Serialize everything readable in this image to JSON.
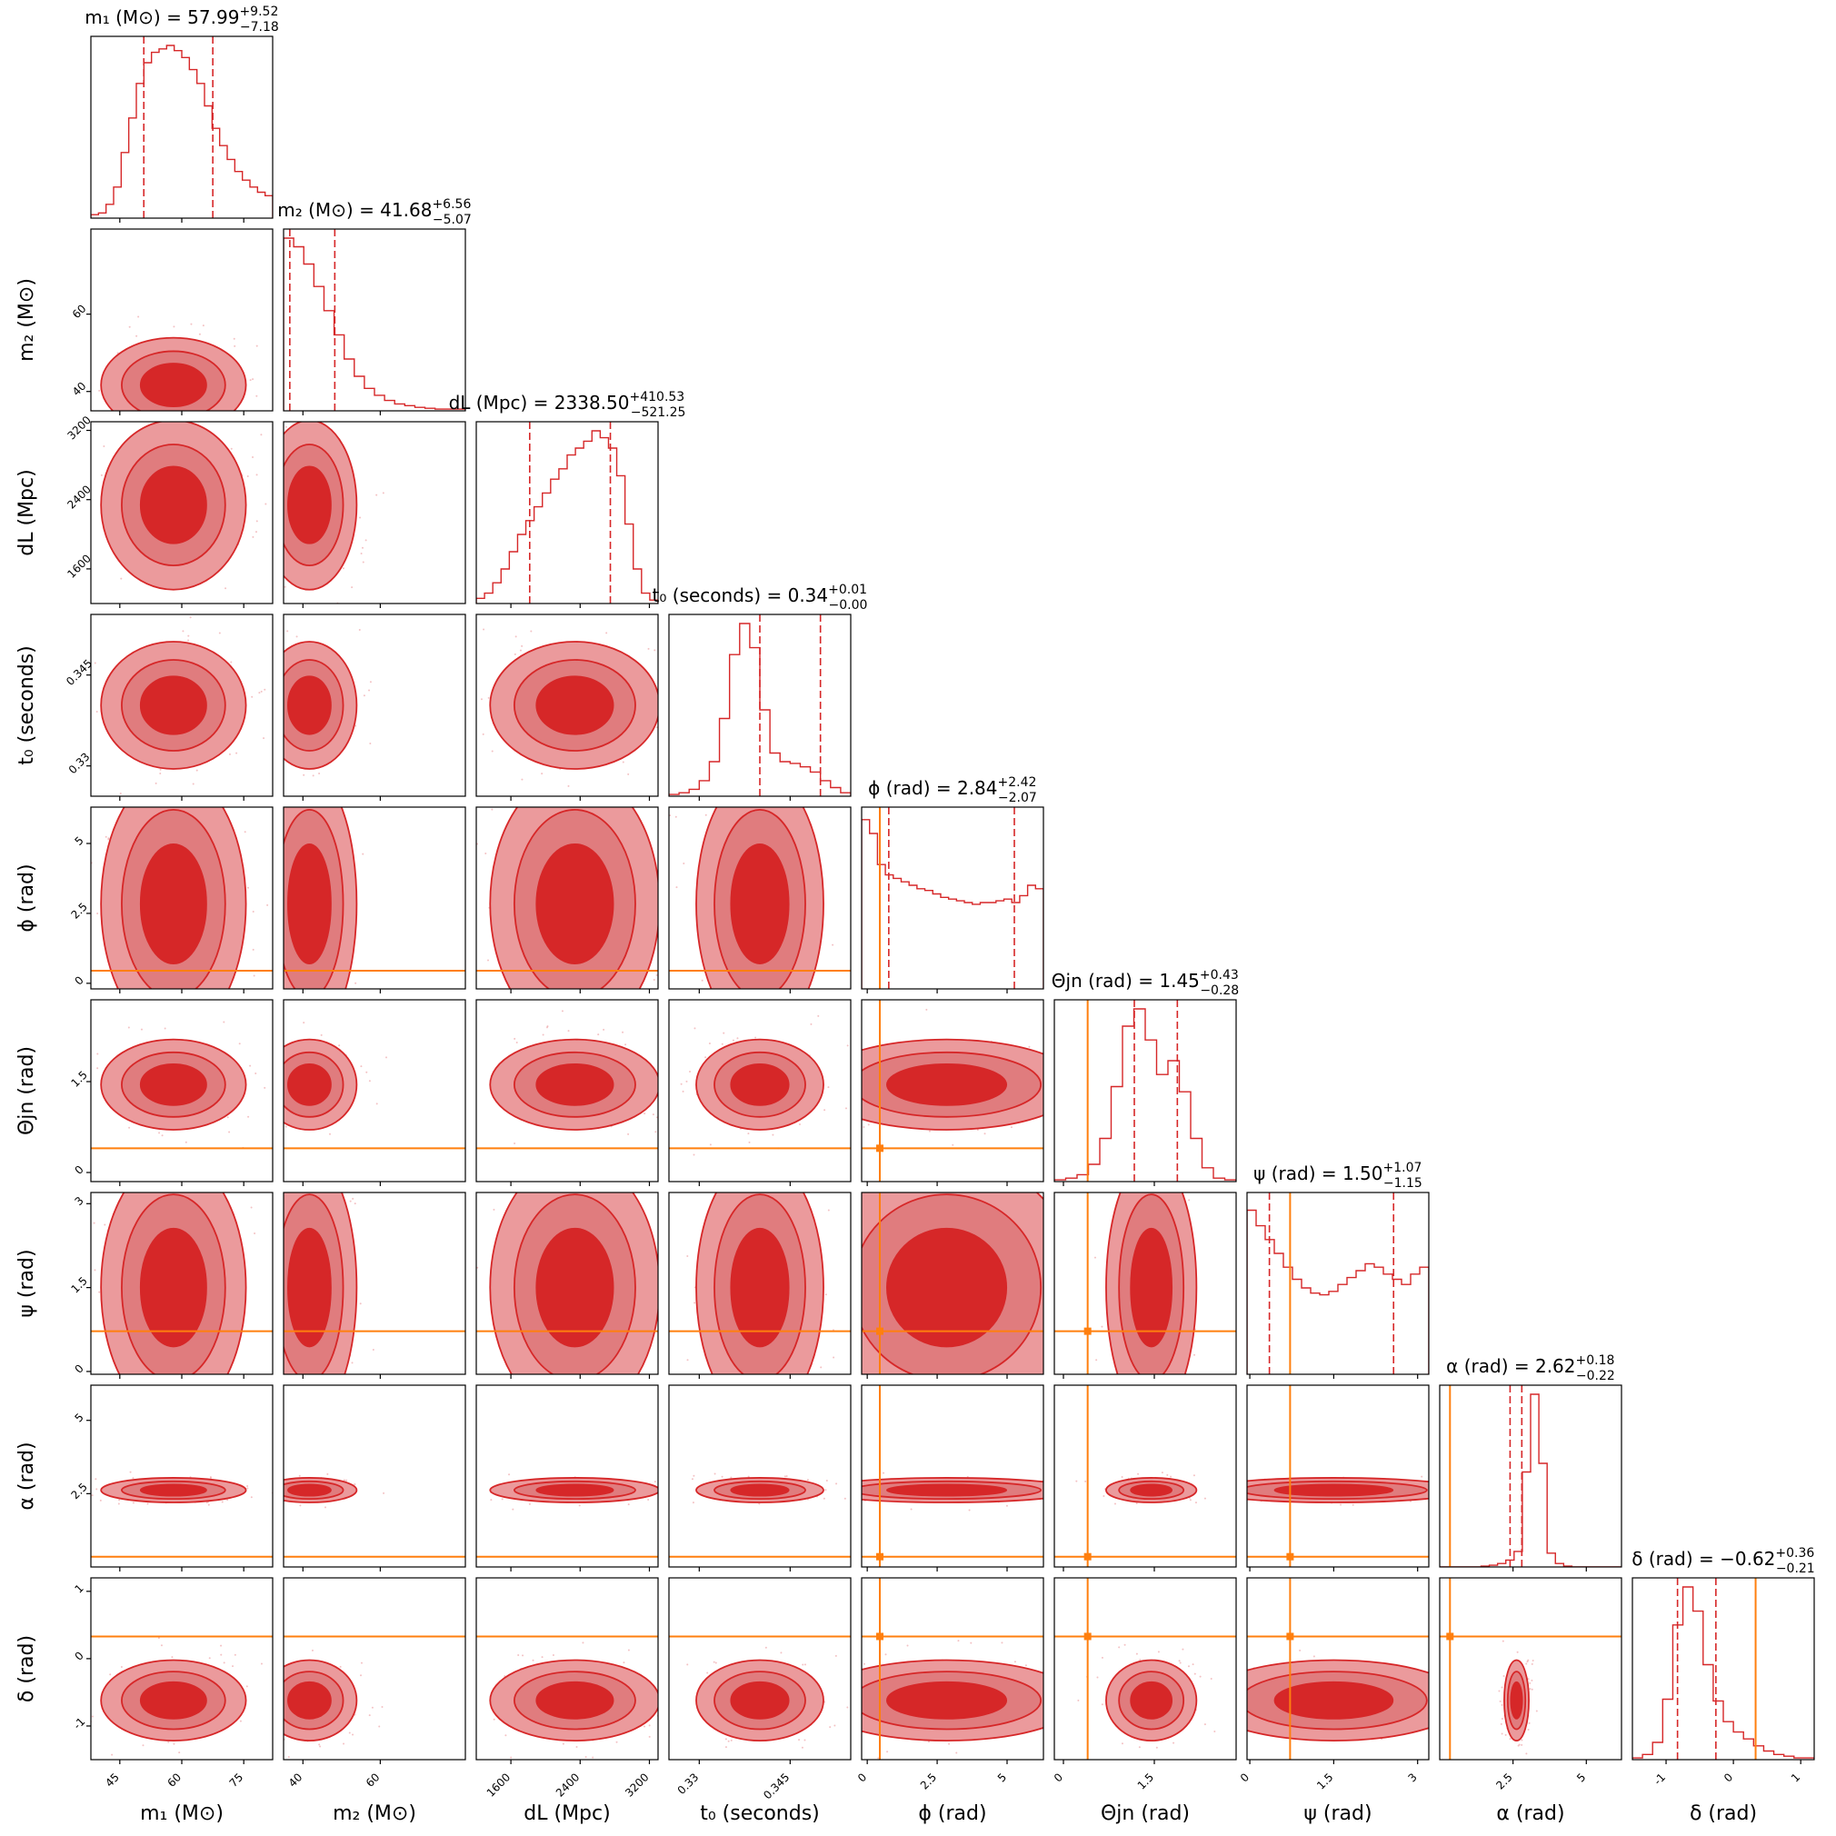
{
  "colors": {
    "posterior": "#d62728",
    "posterior_light": "#eb9a9c",
    "posterior_mid": "#de5b5d",
    "truth": "#ff7f0e",
    "frame": "#000000"
  },
  "chart_data": {
    "type": "corner",
    "parameters": [
      {
        "key": "m1",
        "label": "m₁ (M⊙)",
        "title": "m₁ (M⊙) = 57.99",
        "median": 57.99,
        "plus": "+9.52",
        "minus": "−7.18",
        "range": [
          38,
          82
        ],
        "ticks": [
          45,
          60,
          75
        ],
        "truth": null,
        "hist": [
          0.02,
          0.03,
          0.08,
          0.18,
          0.38,
          0.58,
          0.78,
          0.9,
          0.96,
          0.98,
          1.0,
          0.97,
          0.93,
          0.86,
          0.78,
          0.65,
          0.52,
          0.42,
          0.34,
          0.27,
          0.22,
          0.18,
          0.15,
          0.13
        ]
      },
      {
        "key": "m2",
        "label": "m₂ (M⊙)",
        "title": "m₂ (M⊙) = 41.68",
        "median": 41.68,
        "plus": "+6.56",
        "minus": "−5.07",
        "range": [
          35,
          82
        ],
        "ticks": [
          40,
          60
        ],
        "truth": null,
        "hist": [
          1.0,
          0.95,
          0.85,
          0.72,
          0.58,
          0.44,
          0.3,
          0.2,
          0.13,
          0.09,
          0.06,
          0.04,
          0.03,
          0.02,
          0.015,
          0.01,
          0.01,
          0.01
        ]
      },
      {
        "key": "dL",
        "label": "dL (Mpc)",
        "title": "dL (Mpc) = 2338.50",
        "median": 2338.5,
        "plus": "+410.53",
        "minus": "−521.25",
        "range": [
          1200,
          3300
        ],
        "ticks": [
          1600,
          2400,
          3200
        ],
        "truth": null,
        "hist": [
          0.03,
          0.06,
          0.12,
          0.2,
          0.3,
          0.4,
          0.48,
          0.56,
          0.64,
          0.72,
          0.78,
          0.86,
          0.9,
          0.94,
          1.0,
          0.96,
          0.9,
          0.74,
          0.46,
          0.2,
          0.06,
          0.02
        ]
      },
      {
        "key": "t0",
        "label": "t₀ (seconds)",
        "title": "t₀ (seconds) = 0.34",
        "median": 0.34,
        "plus": "+0.01",
        "minus": "−0.00",
        "range": [
          0.325,
          0.355
        ],
        "ticks": [
          0.33,
          0.345
        ],
        "truth": null,
        "hist": [
          0.01,
          0.02,
          0.04,
          0.09,
          0.2,
          0.45,
          0.82,
          1.0,
          0.86,
          0.5,
          0.25,
          0.2,
          0.19,
          0.17,
          0.14,
          0.09,
          0.05,
          0.02
        ]
      },
      {
        "key": "phi",
        "label": "ϕ (rad)",
        "title": "ϕ (rad) = 2.84",
        "median": 2.84,
        "plus": "+2.42",
        "minus": "−2.07",
        "range": [
          -0.2,
          6.3
        ],
        "ticks": [
          0.0,
          2.5,
          5.0
        ],
        "truth": 0.45,
        "hist": [
          0.98,
          0.9,
          0.72,
          0.66,
          0.64,
          0.62,
          0.6,
          0.58,
          0.57,
          0.55,
          0.53,
          0.52,
          0.51,
          0.5,
          0.49,
          0.5,
          0.5,
          0.51,
          0.52,
          0.5,
          0.54,
          0.6,
          0.58
        ]
      },
      {
        "key": "thetajn",
        "label": "Θjn (rad)",
        "title": "Θjn (rad) = 1.45",
        "median": 1.45,
        "plus": "+0.43",
        "minus": "−0.28",
        "range": [
          -0.15,
          2.85
        ],
        "ticks": [
          0.0,
          1.5
        ],
        "truth": 0.4,
        "hist": [
          0.01,
          0.02,
          0.04,
          0.1,
          0.25,
          0.55,
          0.9,
          1.0,
          0.82,
          0.62,
          0.7,
          0.52,
          0.25,
          0.08,
          0.02,
          0.01
        ]
      },
      {
        "key": "psi",
        "label": "ψ (rad)",
        "title": "ψ (rad) = 1.50",
        "median": 1.5,
        "plus": "+1.07",
        "minus": "−1.15",
        "range": [
          -0.05,
          3.2
        ],
        "ticks": [
          0.0,
          1.5,
          3.0
        ],
        "truth": 0.72,
        "hist": [
          0.95,
          0.86,
          0.78,
          0.7,
          0.62,
          0.55,
          0.5,
          0.47,
          0.46,
          0.48,
          0.52,
          0.56,
          0.6,
          0.64,
          0.62,
          0.58,
          0.55,
          0.52,
          0.58,
          0.62
        ]
      },
      {
        "key": "alpha",
        "label": "α (rad)",
        "title": "α (rad) = 2.62",
        "median": 2.62,
        "plus": "+0.18",
        "minus": "−0.22",
        "range": [
          0.0,
          6.2
        ],
        "ticks": [
          2.5,
          5.0
        ],
        "truth": 0.35,
        "hist": [
          0,
          0,
          0,
          0,
          0,
          0.005,
          0.01,
          0.02,
          0.04,
          0.09,
          0.55,
          1.0,
          0.6,
          0.08,
          0.02,
          0.005,
          0,
          0,
          0,
          0,
          0,
          0
        ]
      },
      {
        "key": "delta",
        "label": "δ (rad)",
        "title": "δ (rad) = −0.62",
        "median": -0.62,
        "plus": "+0.36",
        "minus": "−0.21",
        "range": [
          -1.5,
          1.2
        ],
        "ticks": [
          -1,
          0,
          1
        ],
        "truth": 0.33,
        "hist": [
          0.01,
          0.03,
          0.1,
          0.35,
          0.78,
          1.0,
          0.86,
          0.55,
          0.34,
          0.22,
          0.16,
          0.12,
          0.08,
          0.05,
          0.03,
          0.02,
          0.01,
          0.01
        ]
      }
    ],
    "quantile_lines": "dashed",
    "credible_levels": [
      "inner",
      "middle",
      "outer"
    ]
  }
}
